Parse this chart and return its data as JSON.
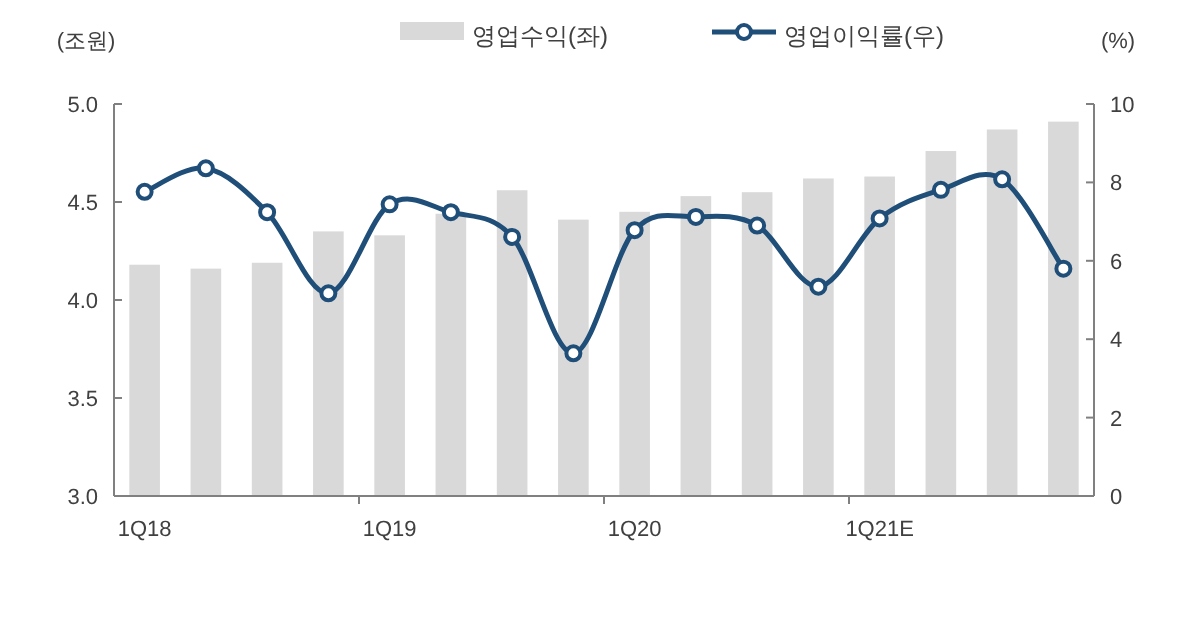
{
  "chart_data": {
    "type": "bar",
    "ylabel": "(조원)",
    "y2label": "(%)",
    "categories": [
      "1Q18",
      null,
      null,
      null,
      "1Q19",
      null,
      null,
      null,
      "1Q20",
      null,
      null,
      null,
      "1Q21E",
      null,
      null,
      null
    ],
    "series": [
      {
        "name": "영업수익(좌)",
        "color": "#d9d9d9",
        "values": [
          4.18,
          4.16,
          4.19,
          4.35,
          4.33,
          4.44,
          4.56,
          4.41,
          4.45,
          4.53,
          4.55,
          4.62,
          4.63,
          4.76,
          4.87,
          4.91
        ]
      },
      {
        "name": "영업이익률(우)",
        "type": "line",
        "axis": "y2",
        "color": "#1f4e79",
        "marker": "circle",
        "values": [
          7.76,
          8.36,
          7.24,
          5.17,
          7.44,
          7.24,
          6.61,
          3.64,
          6.78,
          7.12,
          6.9,
          5.34,
          7.08,
          7.81,
          8.08,
          5.8
        ]
      }
    ],
    "ylim": [
      3.0,
      5.0
    ],
    "yticks": [
      {
        "value": 3.0,
        "label": "3.0"
      },
      {
        "value": 3.5,
        "label": "3.5"
      },
      {
        "value": 4.0,
        "label": "4.0"
      },
      {
        "value": 4.5,
        "label": "4.5"
      },
      {
        "value": 5.0,
        "label": "5.0"
      }
    ],
    "y2lim": [
      0,
      10
    ],
    "y2ticks": [
      0,
      2,
      4,
      6,
      8,
      10
    ],
    "legend": "top",
    "grid": false
  }
}
